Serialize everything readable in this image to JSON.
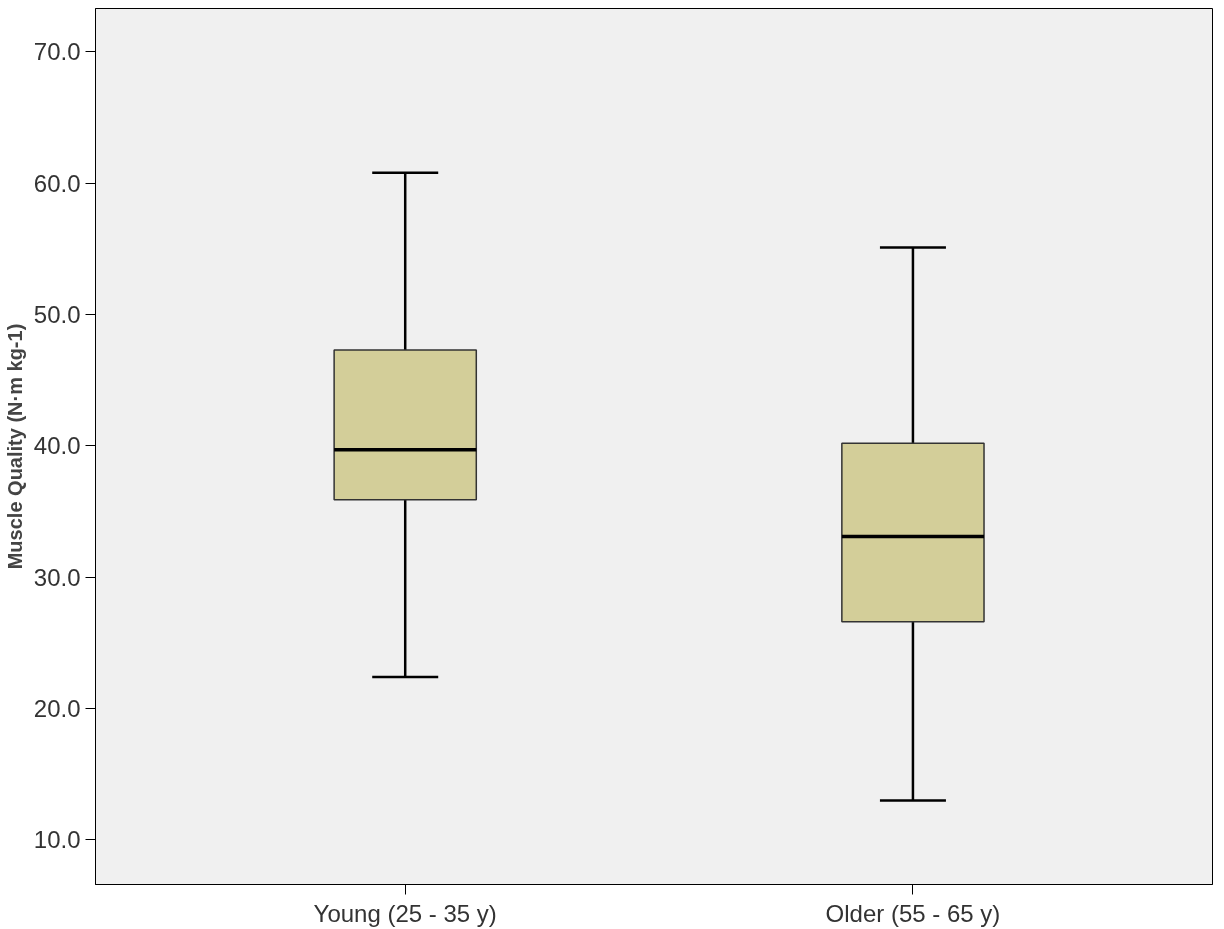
{
  "chart_data": {
    "type": "box",
    "ylabel": "Muscle Quality (N·m kg-1)",
    "categories": [
      "Young (25 - 35 y)",
      "Older (55 - 65 y)"
    ],
    "series": [
      {
        "color": "#d3ce99",
        "boxes": [
          {
            "low": 22.4,
            "q1": 35.9,
            "median": 39.7,
            "q3": 47.3,
            "high": 60.8
          },
          {
            "low": 13.0,
            "q1": 26.6,
            "median": 33.1,
            "q3": 40.2,
            "high": 55.1
          }
        ]
      }
    ],
    "ylim": [
      6.6,
      73.3
    ],
    "yticks": [
      {
        "value": 10,
        "label": "10.0"
      },
      {
        "value": 20,
        "label": "20.0"
      },
      {
        "value": 30,
        "label": "30.0"
      },
      {
        "value": 40,
        "label": "40.0"
      },
      {
        "value": 50,
        "label": "50.0"
      },
      {
        "value": 60,
        "label": "60.0"
      },
      {
        "value": 70,
        "label": "70.0"
      }
    ],
    "grid": false
  }
}
